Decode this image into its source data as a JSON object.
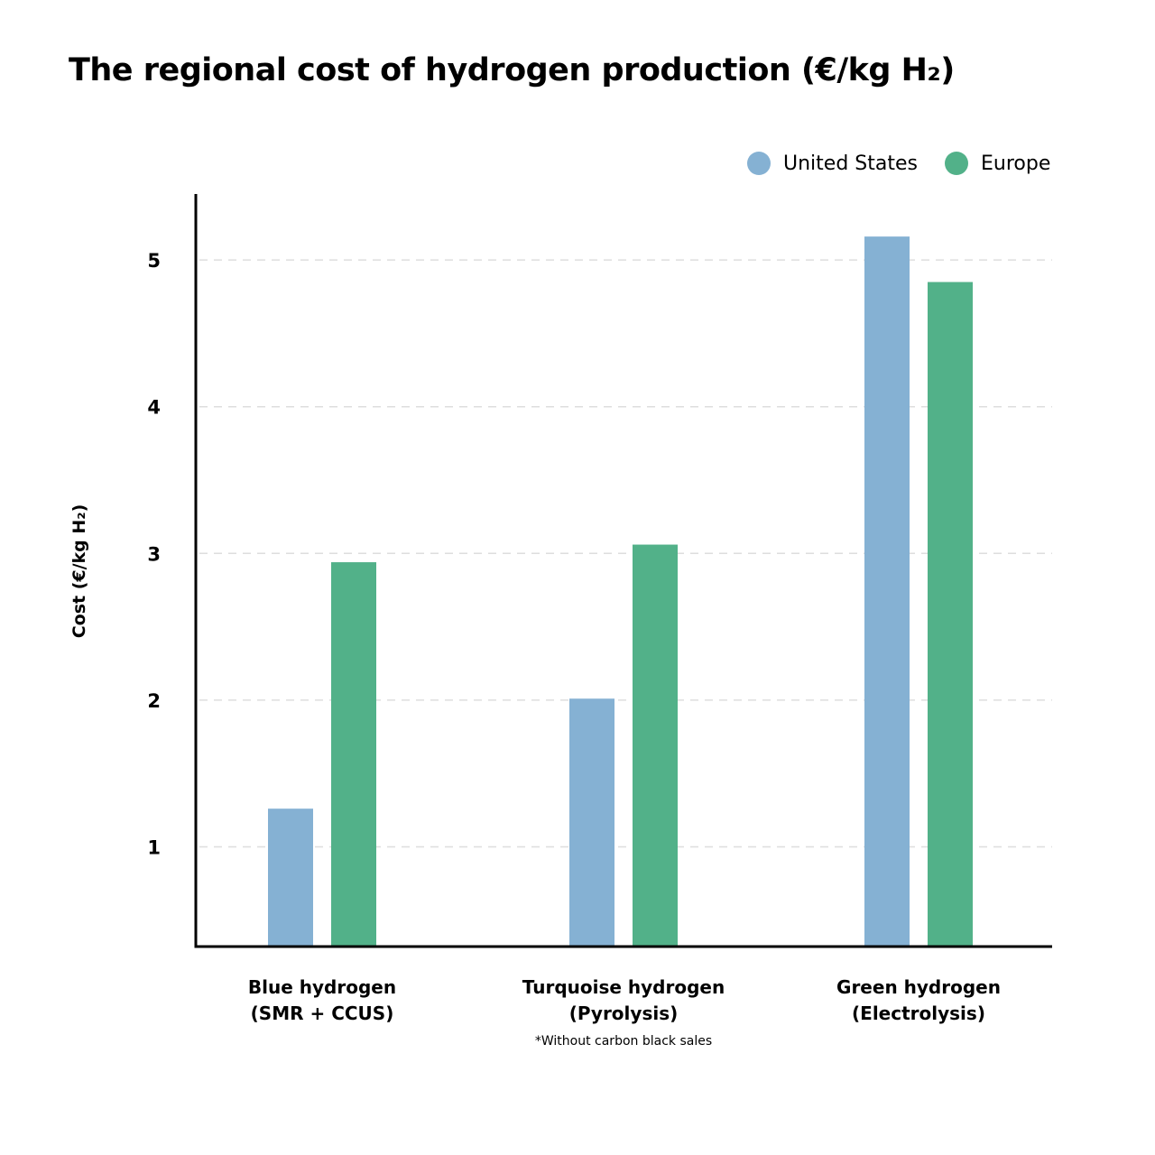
{
  "chart_data": {
    "type": "bar",
    "title": "The regional cost of hydrogen production (€/kg H₂)",
    "ylabel": "Cost (€/kg H₂)",
    "xlabel": "",
    "categories": [
      [
        "Blue hydrogen",
        "(SMR + CCUS)"
      ],
      [
        "Turquoise hydrogen",
        "(Pyrolysis)"
      ],
      [
        "Green hydrogen",
        "(Electrolysis)"
      ]
    ],
    "series": [
      {
        "name": "United States",
        "color": "#85B1D3",
        "values": [
          1.26,
          2.01,
          5.16
        ]
      },
      {
        "name": "Europe",
        "color": "#52B189",
        "values": [
          2.94,
          3.06,
          4.85
        ]
      }
    ],
    "ylim": [
      0.32,
      5.45
    ],
    "yticks": [
      1,
      2,
      3,
      4,
      5
    ],
    "grid": "horizontal dashed",
    "legend": "top-right",
    "note": "*Without carbon black sales"
  }
}
